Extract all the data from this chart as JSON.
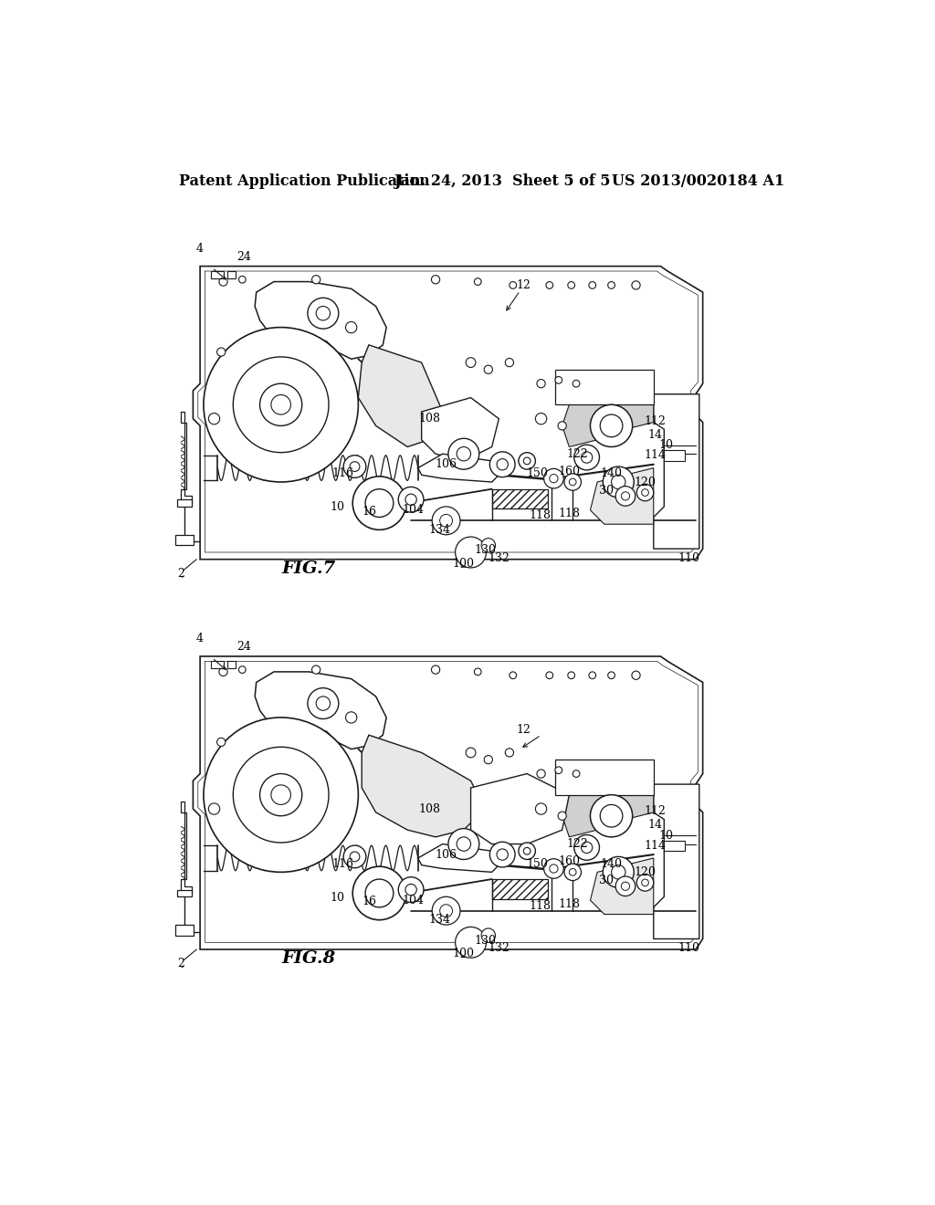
{
  "header_left": "Patent Application Publication",
  "header_mid": "Jan. 24, 2013  Sheet 5 of 5",
  "header_right": "US 2013/0020184 A1",
  "fig7_label": "FIG.7",
  "fig8_label": "FIG.8",
  "bg_color": "#ffffff",
  "line_color": "#1a1a1a",
  "header_fontsize": 11.5,
  "fig_label_fontsize": 13,
  "ref_fontsize": 9
}
